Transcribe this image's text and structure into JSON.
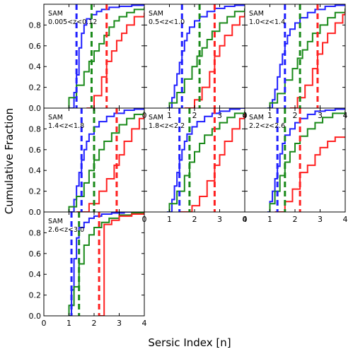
{
  "chart_data": {
    "type": "step-cdf",
    "xlabel": "Sersic Index [n]",
    "ylabel": "Cumulative Fraction",
    "xlim": [
      0,
      4
    ],
    "ylim": [
      0,
      1
    ],
    "xticks": [
      0,
      1,
      2,
      3,
      4
    ],
    "yticks": [
      0.0,
      0.2,
      0.4,
      0.6,
      0.8
    ],
    "series_colors": [
      "#1f1fff",
      "#1a8a1a",
      "#ff2020"
    ],
    "panels": [
      {
        "label_line1": "SAM",
        "label_line2": "0.005<z<0.12",
        "medians": [
          1.3,
          1.9,
          2.5
        ],
        "series": [
          {
            "x": [
              1.0,
              1.2,
              1.3,
              1.4,
              1.5,
              1.6,
              1.7,
              1.9,
              2.1,
              2.3,
              2.6,
              3.0,
              3.5,
              4.0
            ],
            "y": [
              0.0,
              0.15,
              0.32,
              0.58,
              0.72,
              0.8,
              0.86,
              0.9,
              0.93,
              0.95,
              0.97,
              0.98,
              0.99,
              1.0
            ]
          },
          {
            "x": [
              1.0,
              1.3,
              1.6,
              1.8,
              2.0,
              2.2,
              2.4,
              2.6,
              2.8,
              3.0,
              3.3,
              3.6,
              4.0
            ],
            "y": [
              0.1,
              0.22,
              0.35,
              0.45,
              0.55,
              0.62,
              0.7,
              0.78,
              0.84,
              0.88,
              0.92,
              0.95,
              0.97
            ]
          },
          {
            "x": [
              1.7,
              2.0,
              2.3,
              2.5,
              2.7,
              2.9,
              3.1,
              3.3,
              3.6,
              4.0
            ],
            "y": [
              0.0,
              0.12,
              0.3,
              0.45,
              0.55,
              0.65,
              0.72,
              0.8,
              0.88,
              0.92
            ]
          }
        ]
      },
      {
        "label_line1": "SAM",
        "label_line2": "0.5<z<1.0",
        "medians": [
          1.5,
          2.2,
          2.8
        ],
        "series": [
          {
            "x": [
              0.9,
              1.1,
              1.2,
              1.3,
              1.4,
              1.5,
              1.6,
              1.7,
              1.8,
              2.0,
              2.2,
              2.5,
              2.8,
              3.2,
              3.6,
              4.0
            ],
            "y": [
              0.0,
              0.1,
              0.22,
              0.33,
              0.44,
              0.55,
              0.65,
              0.72,
              0.78,
              0.84,
              0.88,
              0.93,
              0.96,
              0.98,
              0.99,
              1.0
            ]
          },
          {
            "x": [
              1.0,
              1.3,
              1.6,
              1.9,
              2.1,
              2.3,
              2.5,
              2.7,
              3.0,
              3.3,
              3.6,
              4.0
            ],
            "y": [
              0.05,
              0.15,
              0.28,
              0.4,
              0.5,
              0.58,
              0.66,
              0.74,
              0.82,
              0.88,
              0.93,
              0.96
            ]
          },
          {
            "x": [
              1.6,
              2.0,
              2.3,
              2.6,
              2.8,
              3.0,
              3.2,
              3.5,
              3.8,
              4.0
            ],
            "y": [
              0.0,
              0.08,
              0.2,
              0.35,
              0.5,
              0.6,
              0.7,
              0.8,
              0.88,
              0.92
            ]
          }
        ]
      },
      {
        "label_line1": "SAM",
        "label_line2": "1.0<z<1.4",
        "medians": [
          1.6,
          2.2,
          2.9
        ],
        "series": [
          {
            "x": [
              0.9,
              1.1,
              1.2,
              1.3,
              1.4,
              1.5,
              1.6,
              1.7,
              1.8,
              2.0,
              2.2,
              2.5,
              2.8,
              3.2,
              3.6,
              4.0
            ],
            "y": [
              0.0,
              0.08,
              0.18,
              0.3,
              0.42,
              0.52,
              0.62,
              0.7,
              0.76,
              0.82,
              0.87,
              0.92,
              0.95,
              0.98,
              0.99,
              1.0
            ]
          },
          {
            "x": [
              1.0,
              1.3,
              1.6,
              1.9,
              2.1,
              2.3,
              2.5,
              2.7,
              3.0,
              3.3,
              3.6,
              4.0
            ],
            "y": [
              0.05,
              0.14,
              0.27,
              0.38,
              0.48,
              0.56,
              0.64,
              0.72,
              0.8,
              0.87,
              0.92,
              0.96
            ]
          },
          {
            "x": [
              1.8,
              2.1,
              2.4,
              2.7,
              2.9,
              3.1,
              3.3,
              3.6,
              3.9,
              4.0
            ],
            "y": [
              0.0,
              0.1,
              0.22,
              0.38,
              0.52,
              0.63,
              0.72,
              0.82,
              0.9,
              0.93
            ]
          }
        ]
      },
      {
        "label_line1": "SAM",
        "label_line2": "1.4<z<1.8",
        "medians": [
          1.5,
          2.0,
          2.9
        ],
        "series": [
          {
            "x": [
              1.0,
              1.2,
              1.3,
              1.4,
              1.5,
              1.6,
              1.7,
              1.8,
              2.0,
              2.2,
              2.5,
              2.8,
              3.2,
              3.6,
              4.0
            ],
            "y": [
              0.0,
              0.12,
              0.25,
              0.38,
              0.5,
              0.6,
              0.68,
              0.75,
              0.82,
              0.87,
              0.92,
              0.95,
              0.98,
              0.99,
              1.0
            ]
          },
          {
            "x": [
              1.0,
              1.3,
              1.6,
              1.8,
              2.0,
              2.2,
              2.4,
              2.7,
              3.0,
              3.3,
              3.6,
              4.0
            ],
            "y": [
              0.05,
              0.15,
              0.28,
              0.4,
              0.5,
              0.6,
              0.68,
              0.76,
              0.84,
              0.9,
              0.94,
              0.97
            ]
          },
          {
            "x": [
              1.3,
              1.8,
              2.2,
              2.5,
              2.8,
              3.0,
              3.2,
              3.5,
              3.8,
              4.0
            ],
            "y": [
              0.0,
              0.08,
              0.2,
              0.32,
              0.45,
              0.55,
              0.68,
              0.8,
              0.9,
              0.95
            ]
          }
        ]
      },
      {
        "label_line1": "SAM",
        "label_line2": "1.8<z<2.2",
        "medians": [
          1.4,
          1.8,
          2.8
        ],
        "series": [
          {
            "x": [
              0.9,
              1.1,
              1.2,
              1.3,
              1.4,
              1.5,
              1.6,
              1.7,
              1.9,
              2.1,
              2.4,
              2.7,
              3.0,
              3.4,
              3.8,
              4.0
            ],
            "y": [
              0.0,
              0.12,
              0.25,
              0.38,
              0.5,
              0.6,
              0.68,
              0.75,
              0.82,
              0.87,
              0.92,
              0.95,
              0.97,
              0.99,
              1.0,
              1.0
            ]
          },
          {
            "x": [
              1.0,
              1.3,
              1.6,
              1.8,
              2.0,
              2.2,
              2.4,
              2.7,
              3.0,
              3.3,
              3.6,
              4.0
            ],
            "y": [
              0.08,
              0.2,
              0.35,
              0.48,
              0.58,
              0.66,
              0.74,
              0.8,
              0.86,
              0.91,
              0.95,
              0.97
            ]
          },
          {
            "x": [
              1.4,
              1.9,
              2.2,
              2.5,
              2.8,
              3.0,
              3.2,
              3.5,
              3.8,
              4.0
            ],
            "y": [
              0.0,
              0.06,
              0.15,
              0.3,
              0.45,
              0.55,
              0.68,
              0.8,
              0.9,
              0.95
            ]
          }
        ]
      },
      {
        "label_line1": "SAM",
        "label_line2": "2.2<z<2.6",
        "medians": [
          1.3,
          1.6,
          2.2
        ],
        "series": [
          {
            "x": [
              0.9,
              1.0,
              1.1,
              1.2,
              1.3,
              1.4,
              1.5,
              1.6,
              1.8,
              2.0,
              2.2,
              2.5,
              2.8,
              3.2,
              3.6,
              4.0
            ],
            "y": [
              0.0,
              0.1,
              0.2,
              0.32,
              0.44,
              0.56,
              0.66,
              0.74,
              0.8,
              0.86,
              0.9,
              0.94,
              0.97,
              0.98,
              0.99,
              1.0
            ]
          },
          {
            "x": [
              1.0,
              1.2,
              1.4,
              1.6,
              1.8,
              2.0,
              2.2,
              2.5,
              2.8,
              3.1,
              3.5,
              4.0
            ],
            "y": [
              0.08,
              0.2,
              0.35,
              0.48,
              0.58,
              0.66,
              0.73,
              0.8,
              0.86,
              0.91,
              0.95,
              0.97
            ]
          },
          {
            "x": [
              1.2,
              1.6,
              1.9,
              2.2,
              2.5,
              2.8,
              3.0,
              3.3,
              3.6,
              4.0
            ],
            "y": [
              0.0,
              0.1,
              0.22,
              0.38,
              0.45,
              0.55,
              0.62,
              0.68,
              0.72,
              0.72
            ]
          }
        ]
      },
      {
        "label_line1": "SAM",
        "label_line2": "2.6<z<3.0",
        "medians": [
          1.1,
          1.4,
          2.2
        ],
        "series": [
          {
            "x": [
              1.0,
              1.1,
              1.2,
              1.3,
              1.4,
              1.6,
              1.8,
              2.0,
              2.3,
              2.7,
              3.2,
              4.0
            ],
            "y": [
              0.0,
              0.25,
              0.55,
              0.75,
              0.85,
              0.9,
              0.94,
              0.96,
              0.98,
              0.99,
              1.0,
              1.0
            ]
          },
          {
            "x": [
              1.0,
              1.2,
              1.4,
              1.6,
              1.8,
              2.0,
              2.3,
              2.6,
              3.0,
              3.5,
              4.0
            ],
            "y": [
              0.1,
              0.28,
              0.5,
              0.68,
              0.78,
              0.85,
              0.9,
              0.94,
              0.97,
              0.99,
              1.0
            ]
          },
          {
            "x": [
              2.2,
              2.4,
              2.7,
              3.0,
              3.5,
              4.0
            ],
            "y": [
              0.0,
              0.88,
              0.92,
              0.96,
              0.98,
              1.0
            ]
          }
        ]
      }
    ]
  }
}
